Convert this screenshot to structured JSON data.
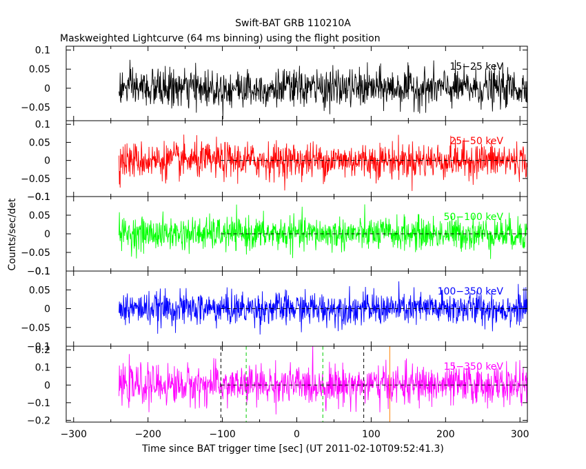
{
  "title": "Swift-BAT GRB 110210A",
  "subtitle": "Maskweighted Lightcurve (64 ms binning) using the flight position",
  "xlabel": "Time since BAT trigger time [sec] (UT 2011-02-10T09:52:41.3)",
  "ylabel": "Counts/sec/det",
  "chart_data": {
    "type": "line",
    "xlim": [
      -310,
      310
    ],
    "x_ticks": [
      -300,
      -200,
      -100,
      0,
      100,
      200,
      300
    ],
    "x_tick_labels": [
      "−300",
      "−200",
      "−100",
      "0",
      "100",
      "200",
      "300"
    ],
    "data_x_range": [
      -239,
      310
    ],
    "panels": [
      {
        "name": "15−25 keV",
        "color": "#000000",
        "ylim": [
          -0.085,
          0.11
        ],
        "y_ticks": [
          -0.05,
          0,
          0.05,
          0.1
        ],
        "y_tick_labels": [
          "−0.05",
          "0",
          "0.05",
          "0.1"
        ],
        "mean": 0.0,
        "noise_rms": 0.025,
        "zero_line": false
      },
      {
        "name": "25−50 keV",
        "color": "#ff0000",
        "ylim": [
          -0.1,
          0.11
        ],
        "y_ticks": [
          -0.1,
          -0.05,
          0,
          0.05,
          0.1
        ],
        "y_tick_labels": [
          "−0.1",
          "−0.05",
          "0",
          "0.05",
          "0.1"
        ],
        "mean": 0.0,
        "noise_rms": 0.025,
        "zero_line": true
      },
      {
        "name": "50−100 keV",
        "color": "#00ff00",
        "ylim": [
          -0.1,
          0.1
        ],
        "y_ticks": [
          -0.1,
          -0.05,
          0,
          0.05,
          0.1
        ],
        "y_tick_labels": [
          "−0.1",
          "−0.05",
          "0",
          "0.05",
          "0.1"
        ],
        "mean": 0.0,
        "noise_rms": 0.022,
        "zero_line": true
      },
      {
        "name": "100−350 keV",
        "color": "#0000ff",
        "ylim": [
          -0.1,
          0.1
        ],
        "y_ticks": [
          -0.1,
          -0.05,
          0,
          0.05,
          0.1
        ],
        "y_tick_labels": [
          "−0.1",
          "−0.05",
          "0",
          "0.05",
          "0.1"
        ],
        "mean": 0.0,
        "noise_rms": 0.022,
        "zero_line": true
      },
      {
        "name": "15−350 keV",
        "color": "#ff00ff",
        "ylim": [
          -0.21,
          0.22
        ],
        "y_ticks": [
          -0.2,
          -0.1,
          0,
          0.1,
          0.2
        ],
        "y_tick_labels": [
          "−0.2",
          "−0.1",
          "0",
          "0.1",
          "0.2"
        ],
        "mean": 0.0,
        "noise_rms": 0.055,
        "zero_line": true
      }
    ],
    "markers": [
      {
        "x": -102,
        "color": "#000000",
        "style": "dashed"
      },
      {
        "x": -68,
        "color": "#00cc00",
        "style": "dashed"
      },
      {
        "x": 35,
        "color": "#00cc00",
        "style": "dashed"
      },
      {
        "x": 90,
        "color": "#000000",
        "style": "dashed"
      },
      {
        "x": 125,
        "color": "#ff8000",
        "style": "solid"
      }
    ]
  }
}
